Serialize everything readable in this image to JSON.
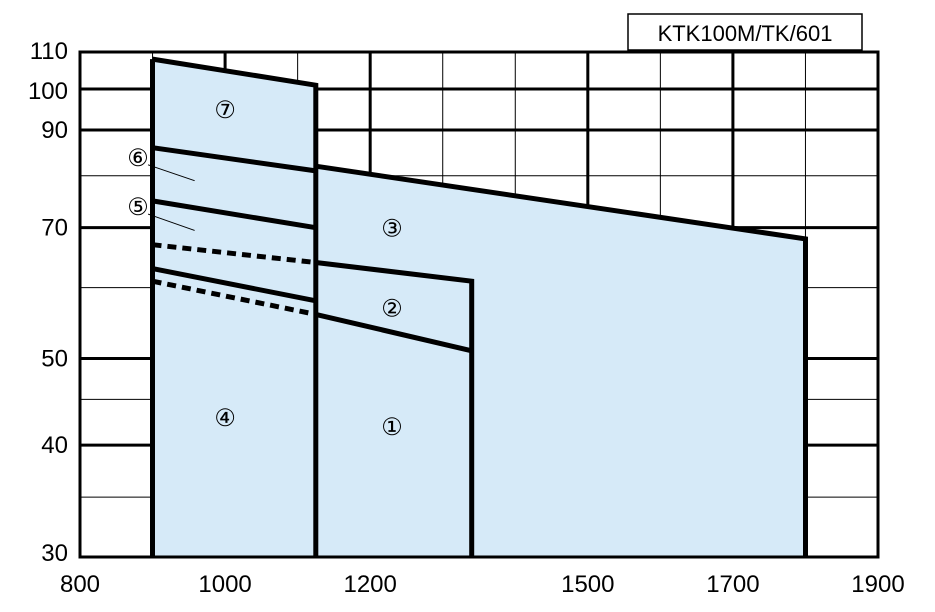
{
  "chart_data": {
    "type": "area",
    "title": "KTK100M/TK/601",
    "xlabel": "",
    "ylabel": "",
    "xlim": [
      800,
      1900
    ],
    "ylim": [
      30,
      110
    ],
    "y_scale": "log",
    "grid": true,
    "x_ticks": [
      800,
      1000,
      1200,
      1500,
      1700,
      1900
    ],
    "x_minor_grid": [
      900,
      1100,
      1300,
      1400,
      1600,
      1800
    ],
    "y_ticks": [
      30,
      40,
      50,
      70,
      90,
      100,
      110
    ],
    "y_minor_grid": [
      35,
      45,
      60,
      80
    ],
    "fill_color": "#d6eaf8",
    "region": [
      [
        900,
        30
      ],
      [
        900,
        108
      ],
      [
        1125,
        101
      ],
      [
        1125,
        82
      ],
      [
        1800,
        68
      ],
      [
        1800,
        30
      ]
    ],
    "series": [
      {
        "type": "solid",
        "points": [
          [
            900,
            108
          ],
          [
            1125,
            101
          ],
          [
            1125,
            30
          ]
        ]
      },
      {
        "type": "solid",
        "points": [
          [
            1125,
            82
          ],
          [
            1800,
            68
          ],
          [
            1800,
            30
          ]
        ]
      },
      {
        "type": "solid",
        "points": [
          [
            900,
            86
          ],
          [
            1125,
            81
          ]
        ]
      },
      {
        "type": "solid",
        "points": [
          [
            900,
            75
          ],
          [
            1125,
            70
          ]
        ]
      },
      {
        "type": "solid",
        "points": [
          [
            900,
            63
          ],
          [
            1125,
            58
          ]
        ]
      },
      {
        "type": "solid",
        "points": [
          [
            1125,
            64
          ],
          [
            1340,
            61
          ],
          [
            1340,
            30
          ]
        ]
      },
      {
        "type": "solid",
        "points": [
          [
            1125,
            56
          ],
          [
            1340,
            51
          ]
        ]
      },
      {
        "type": "dashed",
        "points": [
          [
            900,
            67
          ],
          [
            1125,
            64
          ]
        ]
      },
      {
        "type": "dashed",
        "points": [
          [
            900,
            61
          ],
          [
            1125,
            56
          ]
        ]
      },
      {
        "type": "solid",
        "points": [
          [
            900,
            30
          ],
          [
            900,
            108
          ]
        ]
      }
    ],
    "annotations": [
      {
        "label": "⑦",
        "x": 1000,
        "y": 95
      },
      {
        "label": "⑥",
        "x": 880,
        "y": 84,
        "leader_to": [
          958,
          79
        ]
      },
      {
        "label": "⑤",
        "x": 880,
        "y": 74,
        "leader_to": [
          958,
          69.5
        ]
      },
      {
        "label": "③",
        "x": 1230,
        "y": 70
      },
      {
        "label": "②",
        "x": 1230,
        "y": 57
      },
      {
        "label": "④",
        "x": 1000,
        "y": 43
      },
      {
        "label": "①",
        "x": 1230,
        "y": 42
      }
    ]
  }
}
